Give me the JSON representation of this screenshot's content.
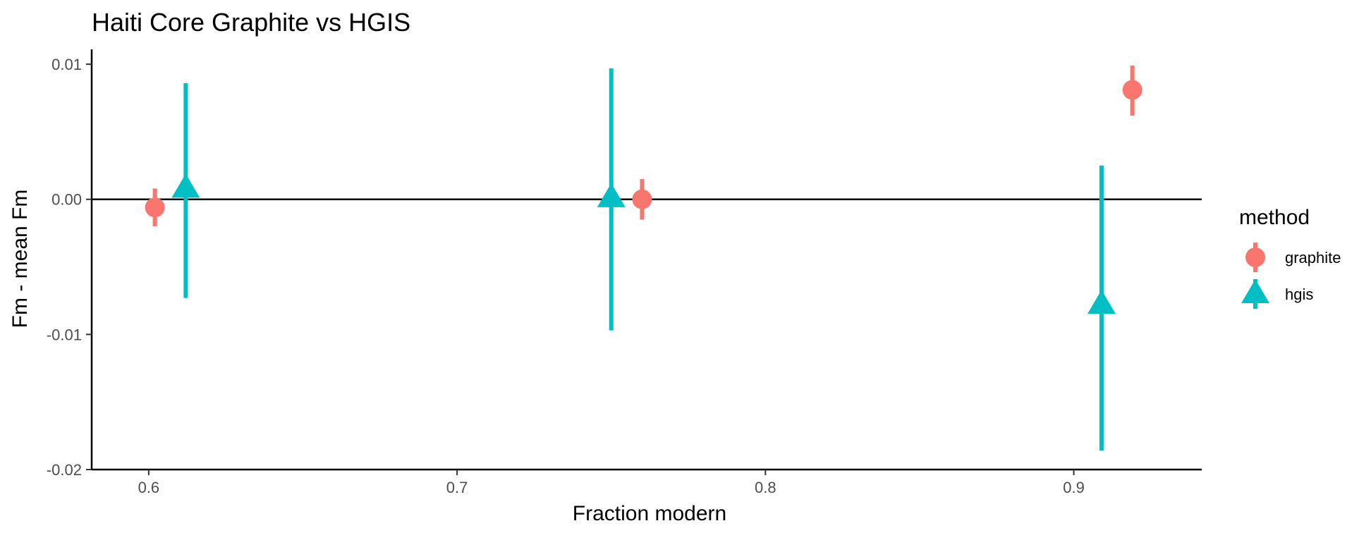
{
  "chart_data": {
    "type": "scatter",
    "title": "Haiti Core Graphite vs HGIS",
    "xlabel": "Fraction modern",
    "ylabel": "Fm - mean Fm",
    "xlim": [
      0.5815,
      0.9415
    ],
    "ylim": [
      -0.02,
      0.0111
    ],
    "x_ticks": [
      0.6,
      0.7,
      0.8,
      0.9
    ],
    "x_tick_labels": [
      "0.6",
      "0.7",
      "0.8",
      "0.9"
    ],
    "y_ticks": [
      -0.02,
      -0.01,
      0.0,
      0.01
    ],
    "y_tick_labels": [
      "-0.02",
      "-0.01",
      "0.00",
      "0.01"
    ],
    "hline": 0,
    "grid": false,
    "legend": {
      "title": "method",
      "position": "right",
      "entries": [
        {
          "label": "graphite",
          "color": "#F8766D",
          "shape": "circle"
        },
        {
          "label": "hgis",
          "color": "#00BFC4",
          "shape": "triangle"
        }
      ]
    },
    "series": [
      {
        "name": "graphite",
        "color": "#F8766D",
        "shape": "circle",
        "points": [
          {
            "x": 0.602,
            "y": -0.0006,
            "ymin": -0.002,
            "ymax": 0.0008
          },
          {
            "x": 0.76,
            "y": 0.0,
            "ymin": -0.0015,
            "ymax": 0.0015
          },
          {
            "x": 0.919,
            "y": 0.0081,
            "ymin": 0.0062,
            "ymax": 0.0099
          }
        ]
      },
      {
        "name": "hgis",
        "color": "#00BFC4",
        "shape": "triangle",
        "points": [
          {
            "x": 0.612,
            "y": 0.0008,
            "ymin": -0.0073,
            "ymax": 0.0086
          },
          {
            "x": 0.75,
            "y": 0.0001,
            "ymin": -0.0097,
            "ymax": 0.0097
          },
          {
            "x": 0.909,
            "y": -0.0078,
            "ymin": -0.0186,
            "ymax": 0.0025
          }
        ]
      }
    ]
  }
}
